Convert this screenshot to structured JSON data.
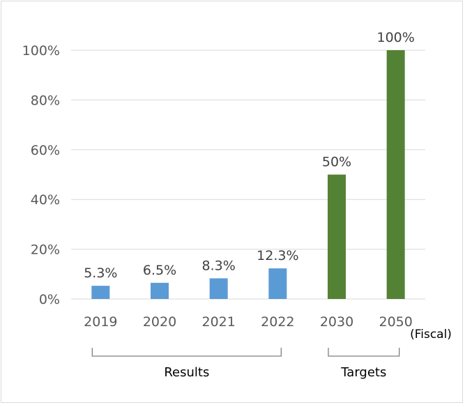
{
  "chart_data": {
    "type": "bar",
    "categories": [
      "2019",
      "2020",
      "2021",
      "2022",
      "2030",
      "2050"
    ],
    "values": [
      5.3,
      6.5,
      8.3,
      12.3,
      50,
      100
    ],
    "data_labels": [
      "5.3%",
      "6.5%",
      "8.3%",
      "12.3%",
      "50%",
      "100%"
    ],
    "groups": [
      {
        "label": "Results",
        "categories": [
          "2019",
          "2020",
          "2021",
          "2022"
        ],
        "color": "#5b9bd5"
      },
      {
        "label": "Targets",
        "categories": [
          "2030",
          "2050"
        ],
        "color": "#548235"
      }
    ],
    "x_unit_label": "(Fiscal)",
    "yticks": [
      "0%",
      "20%",
      "40%",
      "60%",
      "80%",
      "100%"
    ],
    "ylim": [
      0,
      100
    ],
    "grid": true,
    "gridline_color": "#d9d9d9",
    "title": "",
    "xlabel": "",
    "ylabel": ""
  }
}
